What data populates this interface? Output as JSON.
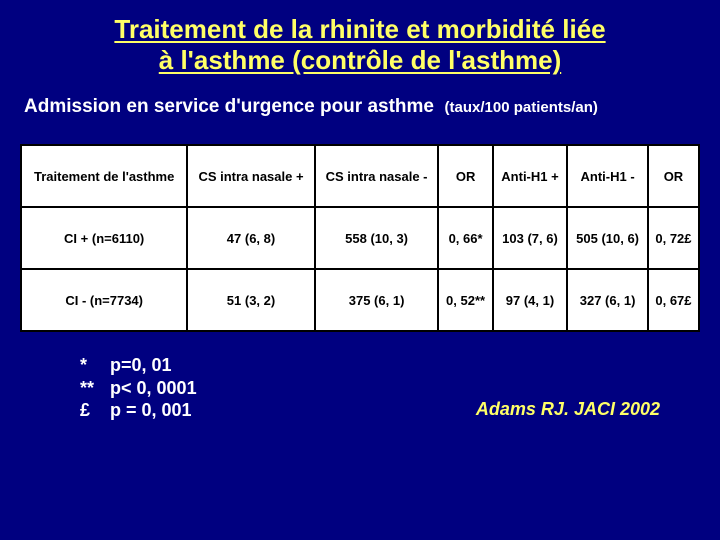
{
  "title_line1": "Traitement de la rhinite et morbidité liée",
  "title_line2": "à l'asthme (contrôle de l'asthme)",
  "subtitle_main": "Admission en service d'urgence pour asthme",
  "subtitle_paren": "(taux/100 patients/an)",
  "table": {
    "headers": [
      "Traitement de l'asthme",
      "CS intra nasale +",
      "CS intra nasale -",
      "OR",
      "Anti-H1 +",
      "Anti-H1 -",
      "OR"
    ],
    "row1": [
      "CI + (n=6110)",
      "47 (6, 8)",
      "558 (10, 3)",
      "0, 66*",
      "103 (7, 6)",
      "505 (10, 6)",
      "0, 72£"
    ],
    "row2": [
      "CI - (n=7734)",
      "51 (3, 2)",
      "375 (6, 1)",
      "0, 52**",
      "97 (4, 1)",
      "327 (6, 1)",
      "0, 67£"
    ]
  },
  "footnotes": {
    "sym1": "*",
    "sym2": "**",
    "sym3": "£",
    "val1": "p=0, 01",
    "val2": "p< 0, 0001",
    "val3": "p = 0, 001"
  },
  "citation": "Adams RJ. JACI 2002",
  "colors": {
    "background": "#000080",
    "title": "#ffff66",
    "body_text": "#ffffff",
    "table_bg": "#ffffff",
    "table_border": "#000000",
    "citation": "#ffff66"
  }
}
